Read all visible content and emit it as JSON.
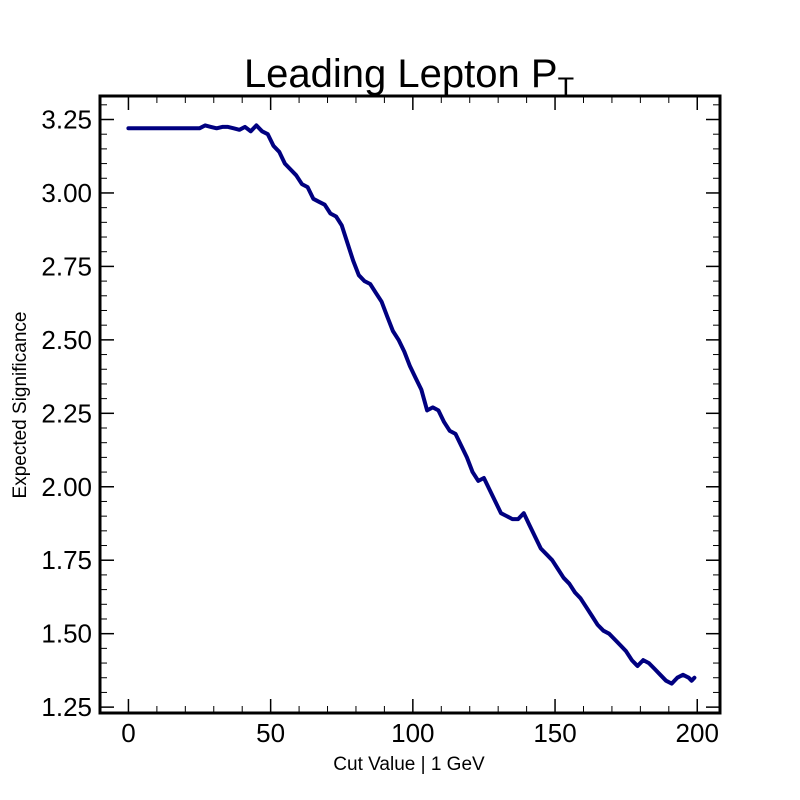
{
  "chart_data": {
    "type": "line",
    "title": "Leading Lepton P",
    "title_subscript": "T",
    "xlabel": "Cut Value | 1 GeV",
    "ylabel": "Expected Significance",
    "xlim": [
      -10,
      208
    ],
    "ylim": [
      1.23,
      3.33
    ],
    "xticks": [
      0,
      50,
      100,
      150,
      200
    ],
    "xtick_labels": [
      "0",
      "50",
      "100",
      "150",
      "200"
    ],
    "yticks": [
      1.25,
      1.5,
      1.75,
      2.0,
      2.25,
      2.5,
      2.75,
      3.0,
      3.25
    ],
    "ytick_labels": [
      "1.25",
      "1.50",
      "1.75",
      "2.00",
      "2.25",
      "2.50",
      "2.75",
      "3.00",
      "3.25"
    ],
    "grid": false,
    "line_color": "#000080",
    "series": [
      {
        "x": [
          0,
          5,
          10,
          15,
          20,
          25,
          27,
          29,
          31,
          33,
          35,
          37,
          39,
          41,
          43,
          45,
          47,
          49,
          51,
          53,
          55,
          57,
          59,
          61,
          63,
          65,
          67,
          69,
          71,
          73,
          75,
          77,
          79,
          81,
          83,
          85,
          87,
          89,
          91,
          93,
          95,
          97,
          99,
          101,
          103,
          105,
          107,
          109,
          111,
          113,
          115,
          117,
          119,
          121,
          123,
          125,
          127,
          129,
          131,
          133,
          135,
          137,
          139,
          141,
          143,
          145,
          147,
          149,
          151,
          153,
          155,
          157,
          159,
          161,
          163,
          165,
          167,
          169,
          171,
          173,
          175,
          177,
          179,
          181,
          183,
          185,
          187,
          189,
          191,
          193,
          195,
          197,
          198,
          199
        ],
        "y": [
          3.22,
          3.22,
          3.22,
          3.22,
          3.22,
          3.22,
          3.23,
          3.225,
          3.22,
          3.225,
          3.225,
          3.22,
          3.215,
          3.225,
          3.21,
          3.23,
          3.21,
          3.2,
          3.16,
          3.14,
          3.1,
          3.08,
          3.06,
          3.03,
          3.02,
          2.98,
          2.97,
          2.96,
          2.93,
          2.92,
          2.89,
          2.83,
          2.77,
          2.72,
          2.7,
          2.69,
          2.66,
          2.63,
          2.58,
          2.53,
          2.5,
          2.46,
          2.41,
          2.37,
          2.33,
          2.26,
          2.27,
          2.26,
          2.22,
          2.19,
          2.18,
          2.14,
          2.1,
          2.05,
          2.02,
          2.03,
          1.99,
          1.95,
          1.91,
          1.9,
          1.89,
          1.89,
          1.91,
          1.87,
          1.83,
          1.79,
          1.77,
          1.75,
          1.72,
          1.69,
          1.67,
          1.64,
          1.62,
          1.59,
          1.56,
          1.53,
          1.51,
          1.5,
          1.48,
          1.46,
          1.44,
          1.41,
          1.39,
          1.41,
          1.4,
          1.38,
          1.36,
          1.34,
          1.33,
          1.35,
          1.36,
          1.35,
          1.34,
          1.35
        ]
      }
    ]
  }
}
